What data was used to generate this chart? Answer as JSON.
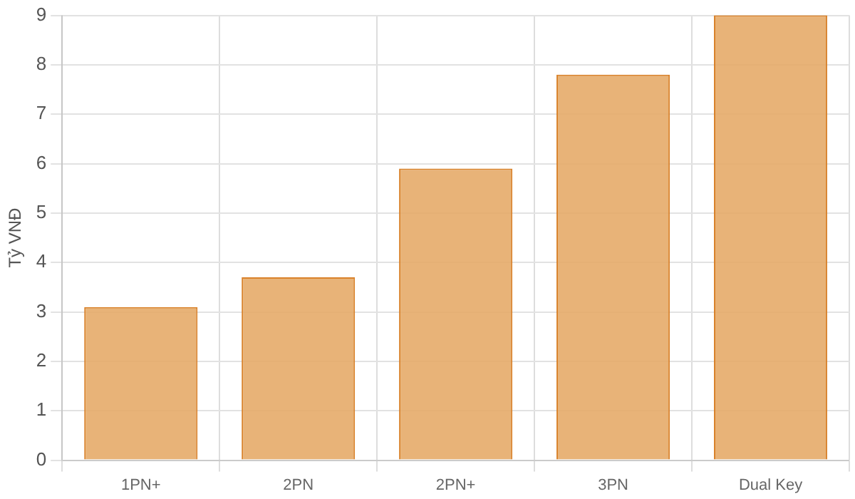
{
  "chart_data": {
    "type": "bar",
    "ylabel": "Tỷ VNĐ",
    "categories": [
      "1PN+",
      "2PN",
      "2PN+",
      "3PN",
      "Dual Key"
    ],
    "values": [
      3.1,
      3.7,
      5.9,
      7.8,
      9
    ],
    "color": "#e6ab69",
    "ylim": [
      0,
      9
    ],
    "yticks": [
      0,
      1,
      2,
      3,
      4,
      5,
      6,
      7,
      8,
      9
    ],
    "grid": true,
    "legend": false
  }
}
